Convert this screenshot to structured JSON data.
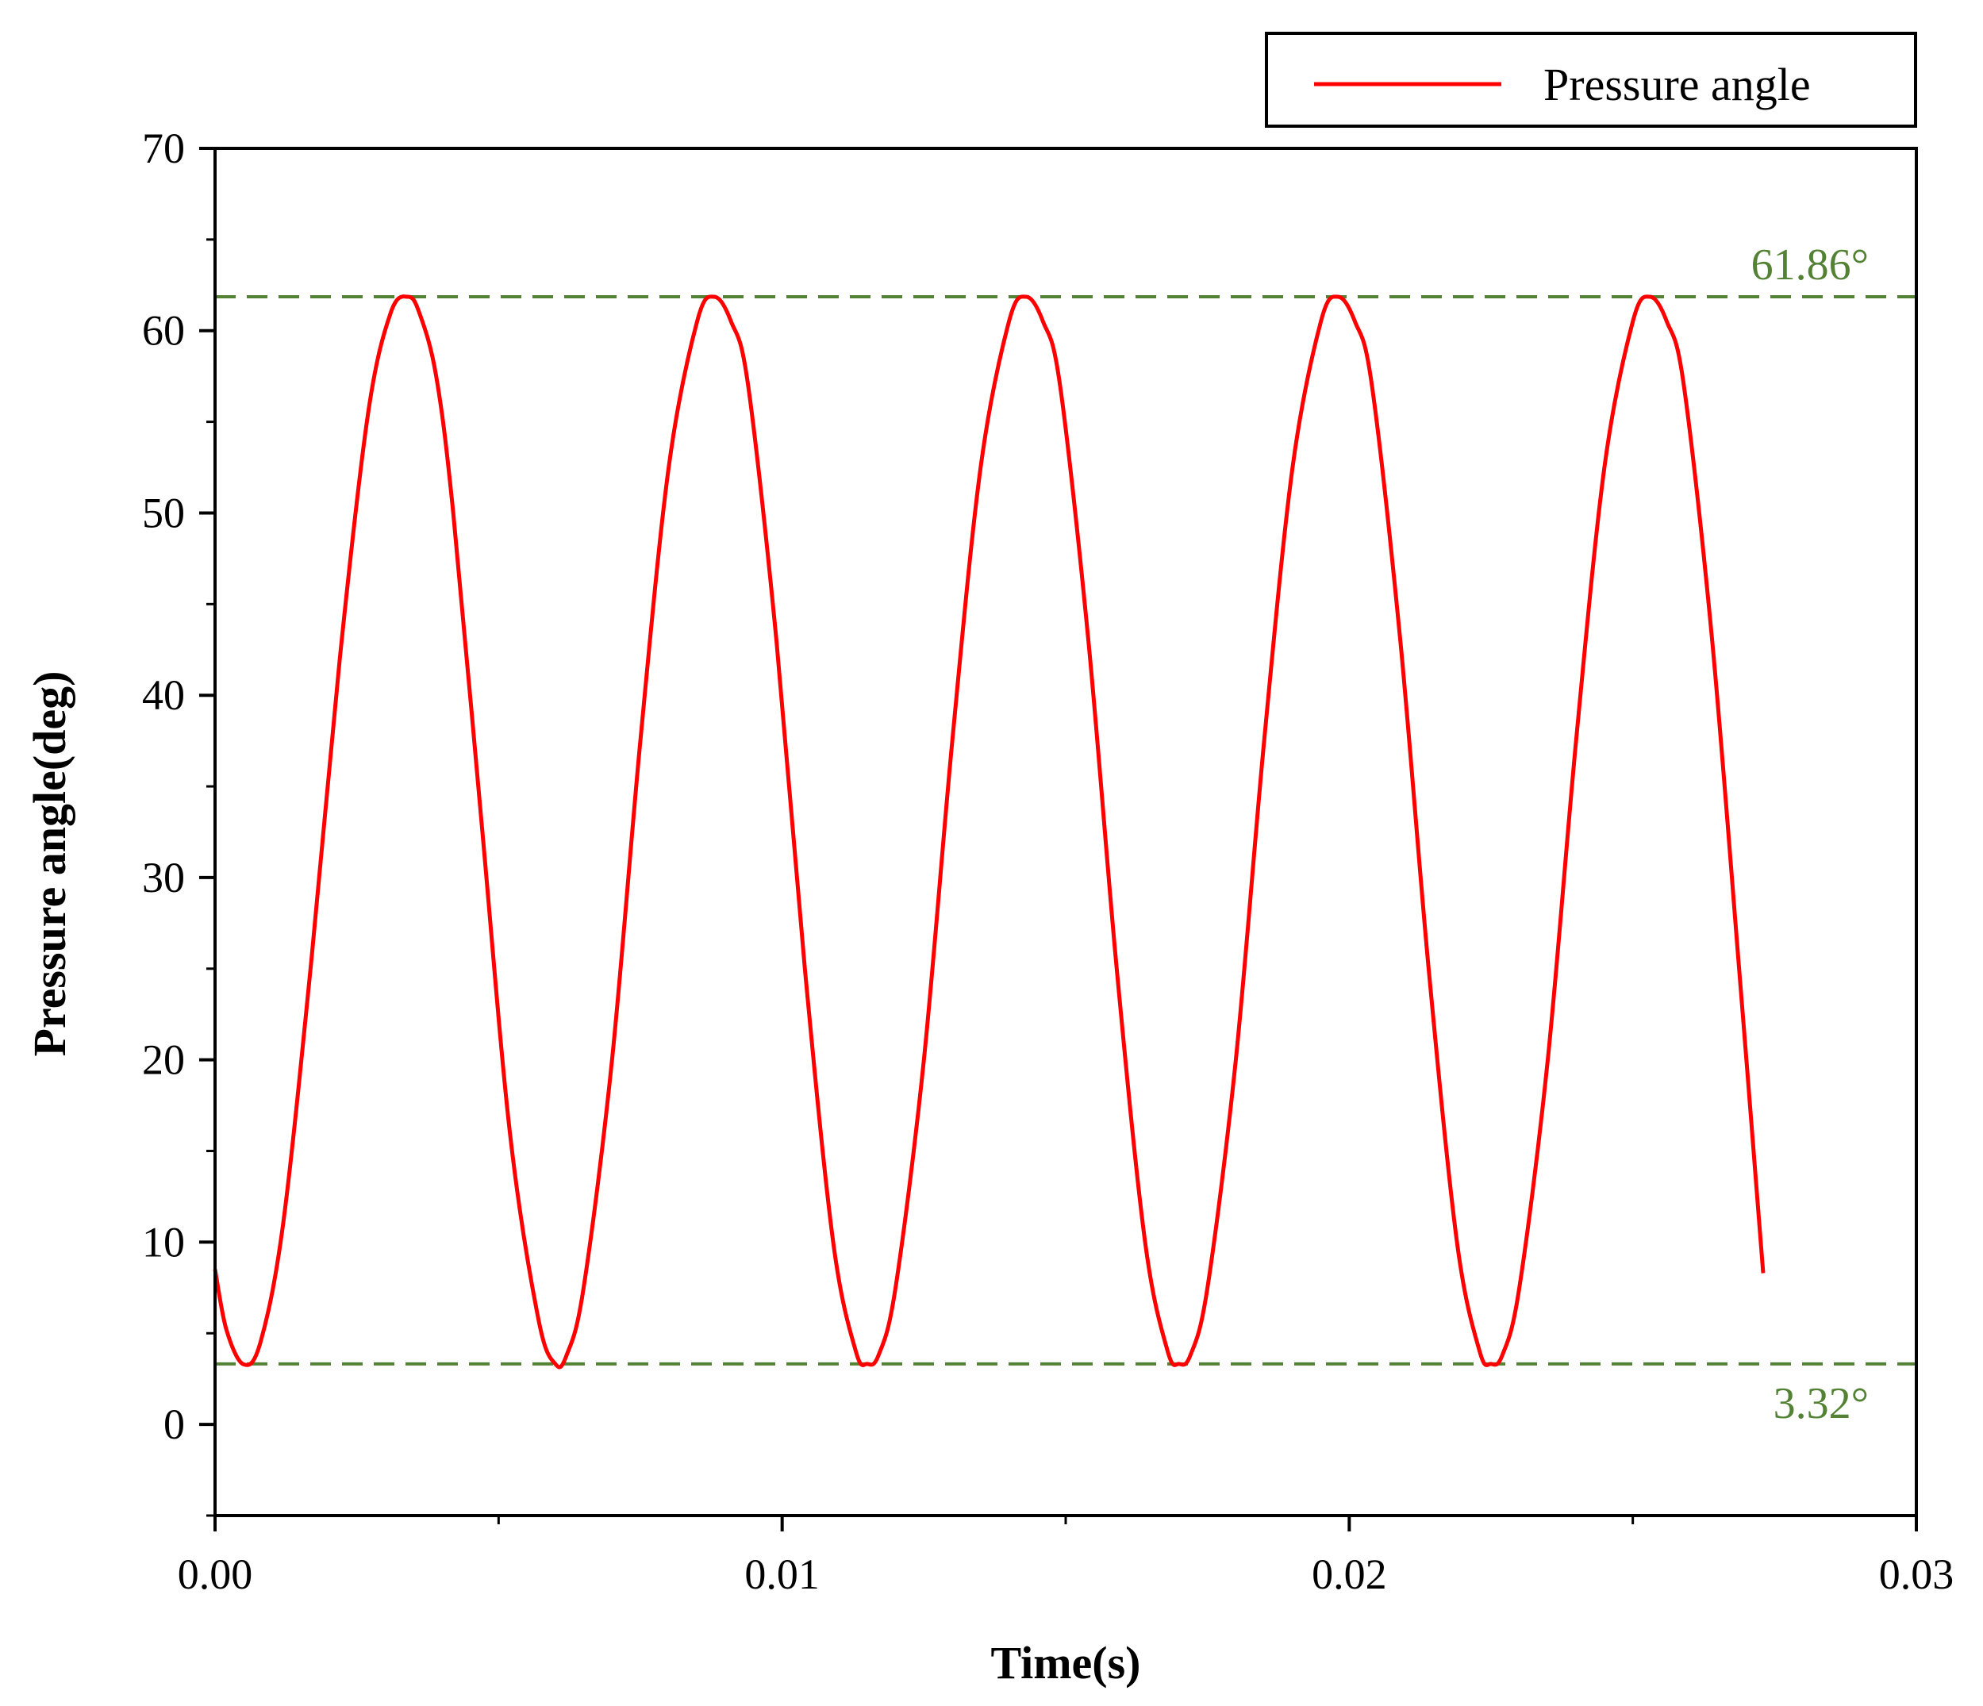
{
  "chart_data": {
    "type": "line",
    "title": "",
    "xlabel": "Time(s)",
    "ylabel": "Pressure angle(deg)",
    "xlim": [
      0,
      0.03
    ],
    "ylim": [
      -5,
      70
    ],
    "x_ticks": [
      0.0,
      0.01,
      0.02,
      0.03
    ],
    "x_tick_labels": [
      "0.00",
      "0.01",
      "0.02",
      "0.03"
    ],
    "y_ticks": [
      0,
      10,
      20,
      30,
      40,
      50,
      60,
      70
    ],
    "y_tick_labels": [
      "0",
      "10",
      "20",
      "30",
      "40",
      "50",
      "60",
      "70"
    ],
    "grid": false,
    "legend_position": "top-right, above plot",
    "series": [
      {
        "name": "Pressure angle",
        "color": "#ff0000",
        "x": [
          0.0,
          0.0002,
          0.0005,
          0.0008,
          0.0012,
          0.0017,
          0.0022,
          0.0027,
          0.0031,
          0.0034,
          0.0036,
          0.0039,
          0.0042,
          0.0047,
          0.0052,
          0.0057,
          0.006,
          0.0062,
          0.0065,
          0.007,
          0.0075,
          0.008,
          0.0085,
          0.0088,
          0.0091,
          0.0094,
          0.0099,
          0.0104,
          0.0109,
          0.0113,
          0.0115,
          0.0117,
          0.012,
          0.0125,
          0.013,
          0.0135,
          0.014,
          0.0143,
          0.0146,
          0.0149,
          0.0154,
          0.0159,
          0.0164,
          0.0168,
          0.017,
          0.0172,
          0.0175,
          0.018,
          0.0185,
          0.019,
          0.0195,
          0.0198,
          0.0201,
          0.0204,
          0.0209,
          0.0214,
          0.0219,
          0.0223,
          0.0225,
          0.0227,
          0.023,
          0.0235,
          0.024,
          0.0245,
          0.025,
          0.0253,
          0.0256,
          0.0259,
          0.0264,
          0.0269,
          0.0273
        ],
        "y": [
          8.5,
          5.2,
          3.3,
          4.5,
          11.0,
          25.5,
          42.0,
          55.5,
          61.0,
          61.86,
          61.0,
          57.5,
          50.0,
          33.0,
          16.0,
          5.8,
          3.32,
          3.8,
          7.5,
          20.0,
          37.5,
          52.5,
          60.5,
          61.86,
          60.5,
          57.0,
          43.0,
          25.0,
          10.0,
          4.0,
          3.32,
          3.8,
          7.5,
          20.0,
          37.5,
          52.5,
          60.5,
          61.86,
          60.5,
          57.0,
          43.0,
          25.0,
          10.0,
          4.0,
          3.32,
          3.8,
          7.5,
          20.0,
          37.5,
          52.5,
          60.5,
          61.86,
          60.5,
          57.0,
          43.0,
          25.0,
          10.0,
          4.0,
          3.32,
          3.8,
          7.5,
          20.0,
          37.5,
          52.5,
          60.5,
          61.86,
          60.5,
          57.0,
          43.0,
          24.0,
          8.3
        ]
      }
    ],
    "reference_lines": [
      {
        "value": 61.86,
        "label": "61.86°",
        "color": "#548235",
        "style": "dashed"
      },
      {
        "value": 3.32,
        "label": "3.32°",
        "color": "#548235",
        "style": "dashed"
      }
    ]
  }
}
